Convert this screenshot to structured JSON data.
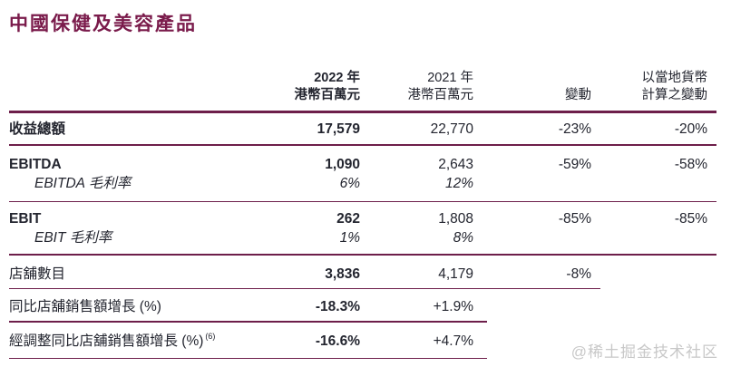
{
  "title": "中國保健及美容產品",
  "watermark": "@稀土掘金技术社区",
  "colors": {
    "accent_rule": "#6d1e4a",
    "title_text": "#7a1b4b",
    "body_text": "#23252f"
  },
  "table": {
    "columns": [
      {
        "line1": "2022 年",
        "line2": "港幣百萬元"
      },
      {
        "line1": "2021 年",
        "line2": "港幣百萬元"
      },
      {
        "line1": "",
        "line2": "變動"
      },
      {
        "line1": "以當地貨幣",
        "line2": "計算之變動"
      }
    ],
    "rows": [
      {
        "label": "收益總額",
        "v2022": "17,579",
        "v2021": "22,770",
        "change": "-23%",
        "local_change": "-20%"
      },
      {
        "label": "EBITDA",
        "v2022": "1,090",
        "v2021": "2,643",
        "change": "-59%",
        "local_change": "-58%"
      },
      {
        "label": "EBITDA 毛利率",
        "v2022": "6%",
        "v2021": "12%",
        "change": "",
        "local_change": ""
      },
      {
        "label": "EBIT",
        "v2022": "262",
        "v2021": "1,808",
        "change": "-85%",
        "local_change": "-85%"
      },
      {
        "label": "EBIT 毛利率",
        "v2022": "1%",
        "v2021": "8%",
        "change": "",
        "local_change": ""
      },
      {
        "label": "店舖數目",
        "v2022": "3,836",
        "v2021": "4,179",
        "change": "-8%",
        "local_change": ""
      },
      {
        "label": "同比店舖銷售額增長 (%)",
        "v2022": "-18.3%",
        "v2021": "+1.9%",
        "change": "",
        "local_change": ""
      },
      {
        "label": "經調整同比店舖銷售額增長 (%)",
        "label_sup": "(6)",
        "v2022": "-16.6%",
        "v2021": "+4.7%",
        "change": "",
        "local_change": ""
      }
    ]
  }
}
